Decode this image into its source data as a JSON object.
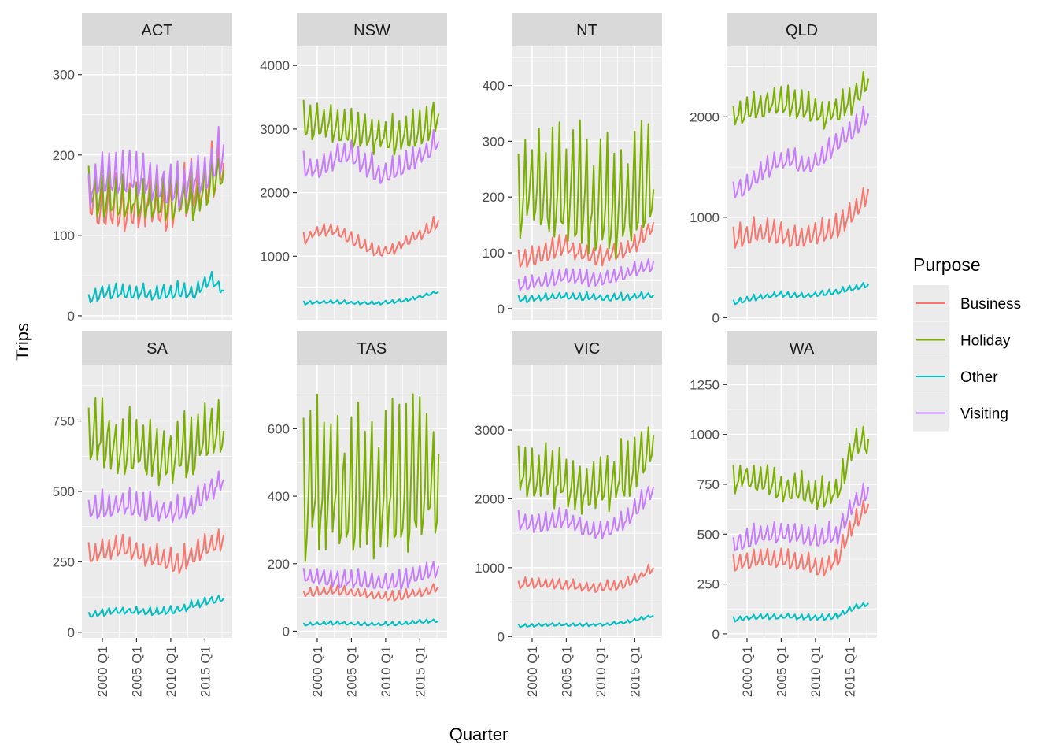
{
  "chart_data": {
    "type": "line",
    "title": "",
    "xlabel": "Quarter",
    "ylabel": "Trips",
    "facet_by": "State",
    "x_range": [
      "1998 Q1",
      "2017 Q4"
    ],
    "x_ticks": [
      "2000 Q1",
      "2005 Q1",
      "2010 Q1",
      "2015 Q1"
    ],
    "x_tick_years": [
      2000,
      2005,
      2010,
      2015
    ],
    "legend": {
      "title": "Purpose",
      "position": "right",
      "entries": [
        {
          "name": "Business",
          "color": "#F8766D"
        },
        {
          "name": "Holiday",
          "color": "#7CAE00"
        },
        {
          "name": "Other",
          "color": "#00BFC4"
        },
        {
          "name": "Visiting",
          "color": "#C77CFF"
        }
      ]
    },
    "panels": [
      {
        "name": "ACT",
        "ylim": [
          -5,
          335
        ],
        "yticks": [
          "0",
          "100",
          "200",
          "300"
        ],
        "ytick_values": [
          0,
          100,
          200,
          300
        ],
        "series": {
          "Business": {
            "level": [
              140,
              135,
              130,
              130,
              140,
              130,
              140,
              150,
              170,
              185
            ],
            "amp": 35
          },
          "Holiday": {
            "level": [
              150,
              145,
              145,
              140,
              140,
              140,
              145,
              140,
              160,
              180
            ],
            "amp": 30
          },
          "Other": {
            "level": [
              20,
              28,
              27,
              28,
              26,
              28,
              30,
              26,
              45,
              32
            ],
            "amp": 10
          },
          "Visiting": {
            "level": [
              155,
              170,
              170,
              175,
              165,
              160,
              155,
              170,
              175,
              210
            ],
            "amp": 30
          }
        }
      },
      {
        "name": "NSW",
        "ylim": [
          0,
          4300
        ],
        "yticks": [
          "1000",
          "2000",
          "3000",
          "4000"
        ],
        "ytick_values": [
          1000,
          2000,
          3000,
          4000
        ],
        "series": {
          "Business": {
            "level": [
              1250,
              1400,
              1400,
              1300,
              1150,
              1050,
              1100,
              1250,
              1350,
              1550
            ],
            "amp": 110
          },
          "Holiday": {
            "level": [
              3100,
              3050,
              3000,
              2950,
              2900,
              2850,
              2800,
              2900,
              3000,
              3200
            ],
            "amp": 330
          },
          "Other": {
            "level": [
              260,
              270,
              280,
              270,
              260,
              260,
              280,
              310,
              380,
              440
            ],
            "amp": 30
          },
          "Visiting": {
            "level": [
              2400,
              2350,
              2500,
              2600,
              2450,
              2250,
              2300,
              2450,
              2600,
              2800
            ],
            "amp": 200
          }
        }
      },
      {
        "name": "NT",
        "ylim": [
          -20,
          470
        ],
        "yticks": [
          "0",
          "100",
          "200",
          "300",
          "400"
        ],
        "ytick_values": [
          0,
          100,
          200,
          300,
          400
        ],
        "series": {
          "Business": {
            "level": [
              85,
              90,
              100,
              110,
              100,
              90,
              95,
              100,
              120,
              150
            ],
            "amp": 20
          },
          "Holiday": {
            "level": [
              190,
              200,
              195,
              195,
              200,
              170,
              170,
              175,
              200,
              220
            ],
            "amp": 110
          },
          "Other": {
            "level": [
              15,
              18,
              20,
              22,
              20,
              20,
              18,
              20,
              22,
              25
            ],
            "amp": 7
          },
          "Visiting": {
            "level": [
              40,
              45,
              50,
              55,
              55,
              50,
              55,
              60,
              70,
              80
            ],
            "amp": 15
          }
        }
      },
      {
        "name": "QLD",
        "ylim": [
          -20,
          2700
        ],
        "yticks": [
          "0",
          "1000",
          "2000"
        ],
        "ytick_values": [
          0,
          1000,
          2000
        ],
        "series": {
          "Business": {
            "level": [
              780,
              820,
              850,
              820,
              780,
              800,
              850,
              900,
              1050,
              1250
            ],
            "amp": 130
          },
          "Holiday": {
            "level": [
              2000,
              2050,
              2100,
              2150,
              2100,
              2050,
              2000,
              2050,
              2150,
              2350
            ],
            "amp": 150
          },
          "Other": {
            "level": [
              150,
              180,
              210,
              230,
              220,
              220,
              240,
              260,
              290,
              330
            ],
            "amp": 30
          },
          "Visiting": {
            "level": [
              1250,
              1300,
              1450,
              1550,
              1550,
              1500,
              1600,
              1750,
              1850,
              2000
            ],
            "amp": 110
          }
        }
      },
      {
        "name": "SA",
        "ylim": [
          -20,
          950
        ],
        "yticks": [
          "0",
          "250",
          "500",
          "750"
        ],
        "ytick_values": [
          0,
          250,
          500,
          750
        ],
        "series": {
          "Business": {
            "level": [
              260,
              290,
              300,
              290,
              260,
              250,
              240,
              270,
              300,
              330
            ],
            "amp": 45
          },
          "Holiday": {
            "level": [
              690,
              670,
              650,
              640,
              630,
              620,
              630,
              650,
              700,
              720
            ],
            "amp": 120
          },
          "Other": {
            "level": [
              60,
              70,
              75,
              75,
              70,
              70,
              80,
              95,
              110,
              120
            ],
            "amp": 15
          },
          "Visiting": {
            "level": [
              430,
              440,
              450,
              440,
              430,
              420,
              430,
              450,
              500,
              540
            ],
            "amp": 50
          }
        }
      },
      {
        "name": "TAS",
        "ylim": [
          -20,
          790
        ],
        "yticks": [
          "0",
          "200",
          "400",
          "600"
        ],
        "ytick_values": [
          0,
          200,
          400,
          600
        ],
        "series": {
          "Business": {
            "level": [
              110,
              115,
              120,
              115,
              110,
              105,
              100,
              105,
              115,
              130
            ],
            "amp": 15
          },
          "Holiday": {
            "level": [
              390,
              390,
              400,
              400,
              400,
              400,
              400,
              410,
              420,
              440
            ],
            "amp": 230
          },
          "Other": {
            "level": [
              20,
              22,
              24,
              22,
              20,
              20,
              20,
              24,
              28,
              30
            ],
            "amp": 6
          },
          "Visiting": {
            "level": [
              160,
              155,
              150,
              150,
              145,
              140,
              145,
              150,
              165,
              185
            ],
            "amp": 30
          }
        }
      },
      {
        "name": "VIC",
        "ylim": [
          -20,
          3950
        ],
        "yticks": [
          "0",
          "1000",
          "2000",
          "3000"
        ],
        "ytick_values": [
          0,
          1000,
          2000,
          3000
        ],
        "series": {
          "Business": {
            "level": [
              750,
              760,
              760,
              740,
              720,
              700,
              720,
              760,
              850,
              1000
            ],
            "amp": 80
          },
          "Holiday": {
            "level": [
              2350,
              2300,
              2250,
              2200,
              2150,
              2100,
              2150,
              2300,
              2500,
              2800
            ],
            "amp": 450
          },
          "Other": {
            "level": [
              150,
              160,
              170,
              170,
              170,
              170,
              180,
              200,
              250,
              300
            ],
            "amp": 25
          },
          "Visiting": {
            "level": [
              1650,
              1600,
              1650,
              1700,
              1600,
              1500,
              1550,
              1650,
              1900,
              2150
            ],
            "amp": 150
          }
        }
      },
      {
        "name": "WA",
        "ylim": [
          -20,
          1350
        ],
        "yticks": [
          "0",
          "250",
          "500",
          "750",
          "1000",
          "1250"
        ],
        "ytick_values": [
          0,
          250,
          500,
          750,
          1000,
          1250
        ],
        "series": {
          "Business": {
            "level": [
              340,
              360,
              380,
              370,
              360,
              340,
              320,
              380,
              550,
              650
            ],
            "amp": 50
          },
          "Holiday": {
            "level": [
              760,
              780,
              760,
              730,
              720,
              700,
              680,
              700,
              950,
              950
            ],
            "amp": 80
          },
          "Other": {
            "level": [
              70,
              80,
              85,
              85,
              85,
              80,
              80,
              90,
              130,
              150
            ],
            "amp": 15
          },
          "Visiting": {
            "level": [
              450,
              470,
              490,
              500,
              500,
              480,
              470,
              500,
              650,
              720
            ],
            "amp": 60
          }
        }
      }
    ]
  }
}
